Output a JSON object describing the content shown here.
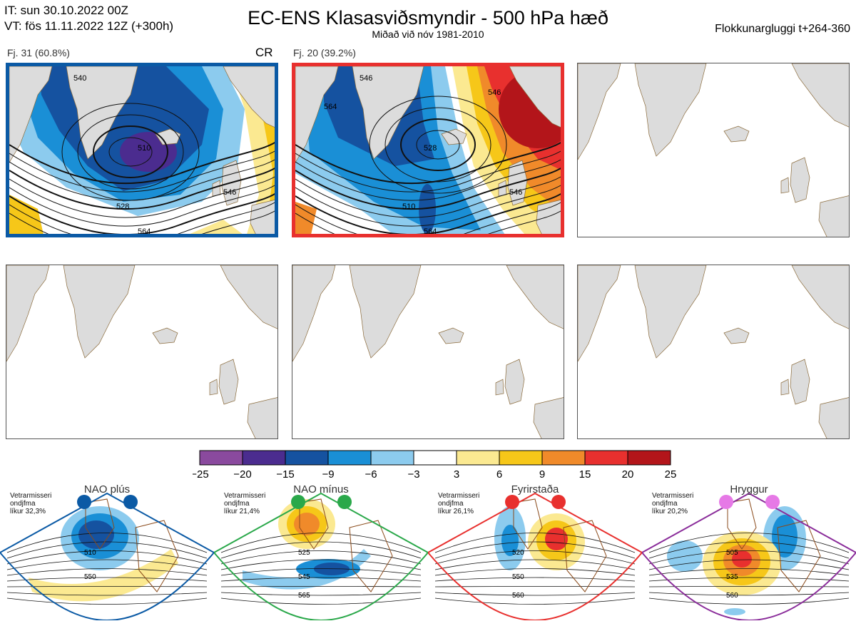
{
  "header": {
    "init_line": "IT: sun 30.10.2022 00Z",
    "valid_line": "VT: fös 11.11.2022 12Z  (+300h)",
    "title": "EC-ENS Klasasviðsmyndir - 500 hPa hæð",
    "subtitle": "Miðað við nóv 1981-2010",
    "window": "Flokkunargluggi t+264-360"
  },
  "panels": [
    {
      "label": "Fj. 31 (60.8%)",
      "tag": "CR",
      "border": "#0b5aa5",
      "contours": [
        "540",
        "510",
        "528",
        "546",
        "564"
      ]
    },
    {
      "label": "Fj. 20 (39.2%)",
      "tag": "",
      "border": "#e8302e",
      "contours": [
        "546",
        "528",
        "510",
        "546",
        "564",
        "564",
        "546"
      ]
    },
    {
      "label": "",
      "tag": "",
      "border": "",
      "contours": []
    },
    {
      "label": "",
      "tag": "",
      "border": "",
      "contours": []
    },
    {
      "label": "",
      "tag": "",
      "border": "",
      "contours": []
    },
    {
      "label": "",
      "tag": "",
      "border": "",
      "contours": []
    }
  ],
  "colorbar": {
    "colors": [
      "#8a4a9e",
      "#4b2c8f",
      "#1552a0",
      "#1a8fd6",
      "#8ccbee",
      "#ffffff",
      "#fbe991",
      "#f6c719",
      "#f08a2a",
      "#e8302e",
      "#b3151a"
    ],
    "ticks": [
      "−25",
      "−20",
      "−15",
      "−9",
      "−6",
      "−3",
      "3",
      "6",
      "9",
      "15",
      "20",
      "25"
    ]
  },
  "regimes": [
    {
      "name": "NAO plús",
      "info": [
        "Vetrarmisseri",
        "ondjfma",
        "líkur 32,3%"
      ],
      "color": "#0b5aa5",
      "dot": "#0b5aa5",
      "labels": [
        "510",
        "550"
      ]
    },
    {
      "name": "NAO mínus",
      "info": [
        "Vetrarmisseri",
        "ondjfma",
        "líkur 21,4%"
      ],
      "color": "#2aa84a",
      "dot": "#2aa84a",
      "labels": [
        "525",
        "545",
        "565"
      ]
    },
    {
      "name": "Fyrirstaða",
      "info": [
        "Vetrarmisseri",
        "ondjfma",
        "líkur 26,1%"
      ],
      "color": "#e8302e",
      "dot": "#e8302e",
      "labels": [
        "520",
        "550",
        "560"
      ]
    },
    {
      "name": "Hryggur",
      "info": [
        "Vetrarmisseri",
        "ondjfma",
        "líkur 20,2%"
      ],
      "color": "#8a2c9a",
      "dot": "#e679e6",
      "labels": [
        "505",
        "535",
        "560"
      ]
    }
  ]
}
